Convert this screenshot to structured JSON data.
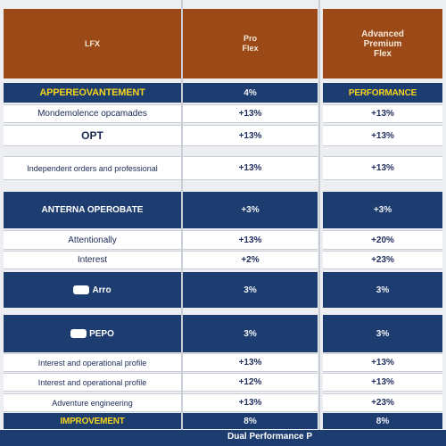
{
  "header": {
    "col1": "LFX",
    "col2": "Pro\nFlex",
    "col3": "Advanced\nPremium\nFlex"
  },
  "rows": [
    {
      "style": "navy-yellow",
      "label": "APPEREOVANTEMENT",
      "v1": "4%",
      "v2": "PERFORMANCE"
    },
    {
      "style": "white",
      "label": "Mondemolence opcamades",
      "v1": "+13%",
      "v2": "+13%"
    },
    {
      "style": "white",
      "label": "OPT",
      "v1": "+13%",
      "v2": "+13%"
    },
    {
      "style": "white-tall",
      "label": "Independent orders and professional",
      "v1": "+13%",
      "v2": "+13%"
    },
    {
      "style": "navy",
      "label": "ANTERNA OPEROBATE",
      "v1": "+3%",
      "v2": "+3%"
    },
    {
      "style": "white",
      "label": "Attentionally",
      "v1": "+13%",
      "v2": "+20%"
    },
    {
      "style": "white",
      "label": "Interest",
      "v1": "+2%",
      "v2": "+23%"
    },
    {
      "style": "navy",
      "label": "Arro",
      "v1": "3%",
      "v2": "3%"
    },
    {
      "style": "navy",
      "label": "PEPO",
      "v1": "3%",
      "v2": "3%"
    },
    {
      "style": "white",
      "label": "Interest and operational profile",
      "v1": "+13%",
      "v2": "+13%"
    },
    {
      "style": "white",
      "label": "Interest and operational profile",
      "v1": "+12%",
      "v2": "+13%"
    },
    {
      "style": "white",
      "label": "Adventure engineering",
      "v1": "+13%",
      "v2": "+23%"
    },
    {
      "style": "navy-yellow",
      "label": "IMPROVEMENT",
      "v1": "8%",
      "v2": "8%"
    }
  ],
  "footer": {
    "text": "Dual Performance P"
  },
  "colors": {
    "brown": "#9b4a17",
    "navy": "#1d3c70",
    "yellow": "#f6d51b"
  }
}
